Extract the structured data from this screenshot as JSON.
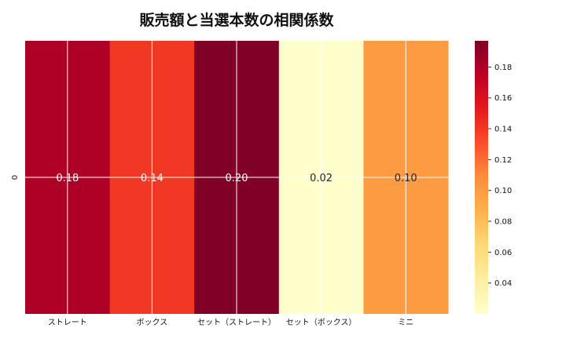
{
  "chart_data": {
    "type": "heatmap",
    "title": "販売額と当選本数の相関係数",
    "x_categories": [
      "ストレート",
      "ボックス",
      "セット（ストレート）",
      "セット（ボックス）",
      "ミニ"
    ],
    "y_categories": [
      "0"
    ],
    "values": [
      [
        0.18,
        0.14,
        0.2,
        0.02,
        0.1
      ]
    ],
    "value_labels": [
      "0.18",
      "0.14",
      "0.20",
      "0.02",
      "0.10"
    ],
    "colorbar": {
      "colormap": "YlOrRd",
      "range": [
        0.02,
        0.197
      ],
      "ticks": [
        0.04,
        0.06,
        0.08,
        0.1,
        0.12,
        0.14,
        0.16,
        0.18
      ],
      "tick_labels": [
        "0.04",
        "0.06",
        "0.08",
        "0.10",
        "0.12",
        "0.14",
        "0.16",
        "0.18"
      ]
    },
    "grid": true
  }
}
